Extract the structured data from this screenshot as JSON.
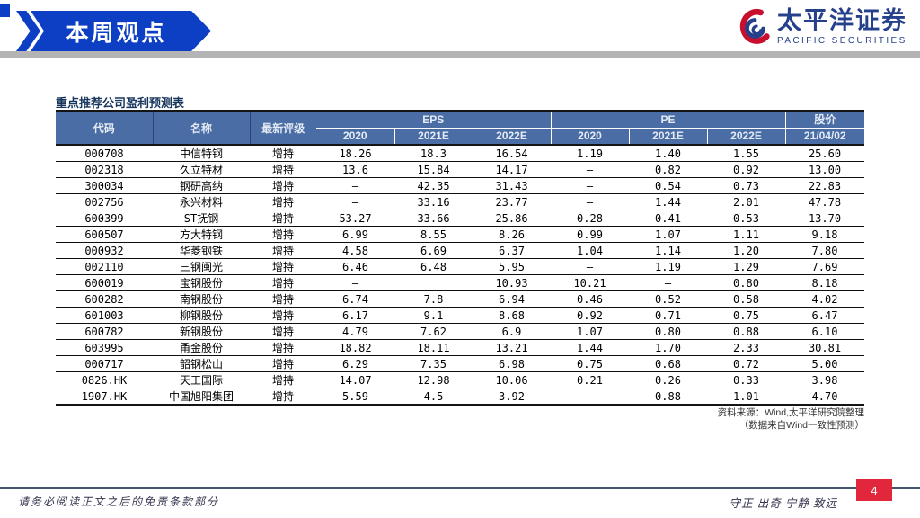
{
  "banner": {
    "label": "本周观点"
  },
  "logo": {
    "name_cn": "太平洋证券",
    "name_en": "PACIFIC SECURITIES",
    "icon": "pacific-securities-swirl-icon",
    "navy": "#26418c",
    "red": "#c8102e"
  },
  "colors": {
    "banner_blue": "#0c3fc3",
    "table_header_blue": "#4a6da5",
    "title_navy": "#17365d",
    "footer_line": "#44546a",
    "page_box_red": "#e2263b"
  },
  "table": {
    "title": "重点推荐公司盈利预测表",
    "header": {
      "code": "代码",
      "name": "名称",
      "rating": "最新评级",
      "eps_group": "EPS",
      "pe_group": "PE",
      "price_group": "股价",
      "eps_years": [
        "2020",
        "2021E",
        "2022E"
      ],
      "pe_years": [
        "2020",
        "2021E",
        "2022E"
      ],
      "price_date": "21/04/02"
    },
    "rows": [
      {
        "code": "000708",
        "name": "中信特钢",
        "rating": "增持",
        "eps": [
          "18.26",
          "18.3",
          "16.54"
        ],
        "pe": [
          "1.19",
          "1.40",
          "1.55"
        ],
        "price": "25.60"
      },
      {
        "code": "002318",
        "name": "久立特材",
        "rating": "增持",
        "eps": [
          "13.6",
          "15.84",
          "14.17"
        ],
        "pe": [
          "–",
          "0.82",
          "0.92"
        ],
        "price": "13.00"
      },
      {
        "code": "300034",
        "name": "钢研高纳",
        "rating": "增持",
        "eps": [
          "–",
          "42.35",
          "31.43"
        ],
        "pe": [
          "–",
          "0.54",
          "0.73"
        ],
        "price": "22.83"
      },
      {
        "code": "002756",
        "name": "永兴材料",
        "rating": "增持",
        "eps": [
          "–",
          "33.16",
          "23.77"
        ],
        "pe": [
          "–",
          "1.44",
          "2.01"
        ],
        "price": "47.78"
      },
      {
        "code": "600399",
        "name": "ST抚钢",
        "rating": "增持",
        "eps": [
          "53.27",
          "33.66",
          "25.86"
        ],
        "pe": [
          "0.28",
          "0.41",
          "0.53"
        ],
        "price": "13.70"
      },
      {
        "code": "600507",
        "name": "方大特钢",
        "rating": "增持",
        "eps": [
          "6.99",
          "8.55",
          "8.26"
        ],
        "pe": [
          "0.99",
          "1.07",
          "1.11"
        ],
        "price": "9.18"
      },
      {
        "code": "000932",
        "name": "华菱钢铁",
        "rating": "增持",
        "eps": [
          "4.58",
          "6.69",
          "6.37"
        ],
        "pe": [
          "1.04",
          "1.14",
          "1.20"
        ],
        "price": "7.80"
      },
      {
        "code": "002110",
        "name": "三钢闽光",
        "rating": "增持",
        "eps": [
          "6.46",
          "6.48",
          "5.95"
        ],
        "pe": [
          "–",
          "1.19",
          "1.29"
        ],
        "price": "7.69"
      },
      {
        "code": "600019",
        "name": "宝钢股份",
        "rating": "增持",
        "eps": [
          "–",
          "",
          "10.93"
        ],
        "pe": [
          "10.21",
          "–",
          "0.80"
        ],
        "price": "8.18"
      },
      {
        "code": "600282",
        "name": "南钢股份",
        "rating": "增持",
        "eps": [
          "6.74",
          "7.8",
          "6.94"
        ],
        "pe": [
          "0.46",
          "0.52",
          "0.58"
        ],
        "price": "4.02"
      },
      {
        "code": "601003",
        "name": "柳钢股份",
        "rating": "增持",
        "eps": [
          "6.17",
          "9.1",
          "8.68"
        ],
        "pe": [
          "0.92",
          "0.71",
          "0.75"
        ],
        "price": "6.47"
      },
      {
        "code": "600782",
        "name": "新钢股份",
        "rating": "增持",
        "eps": [
          "4.79",
          "7.62",
          "6.9"
        ],
        "pe": [
          "1.07",
          "0.80",
          "0.88"
        ],
        "price": "6.10"
      },
      {
        "code": "603995",
        "name": "甬金股份",
        "rating": "增持",
        "eps": [
          "18.82",
          "18.11",
          "13.21"
        ],
        "pe": [
          "1.44",
          "1.70",
          "2.33"
        ],
        "price": "30.81"
      },
      {
        "code": "000717",
        "name": "韶钢松山",
        "rating": "增持",
        "eps": [
          "6.29",
          "7.35",
          "6.98"
        ],
        "pe": [
          "0.75",
          "0.68",
          "0.72"
        ],
        "price": "5.00"
      },
      {
        "code": "0826.HK",
        "name": "天工国际",
        "rating": "增持",
        "eps": [
          "14.07",
          "12.98",
          "10.06"
        ],
        "pe": [
          "0.21",
          "0.26",
          "0.33"
        ],
        "price": "3.98"
      },
      {
        "code": "1907.HK",
        "name": "中国旭阳集团",
        "rating": "增持",
        "eps": [
          "5.59",
          "4.5",
          "3.92"
        ],
        "pe": [
          "–",
          "0.88",
          "1.01"
        ],
        "price": "4.70"
      }
    ],
    "source_line1": "资料来源：Wind,太平洋研究院整理",
    "source_line2": "（数据来自Wind一致性预测）"
  },
  "footer": {
    "disclaimer": "请务必阅读正文之后的免责条款部分",
    "motto": "守正 出奇 宁静 致远",
    "page_number": "4"
  }
}
